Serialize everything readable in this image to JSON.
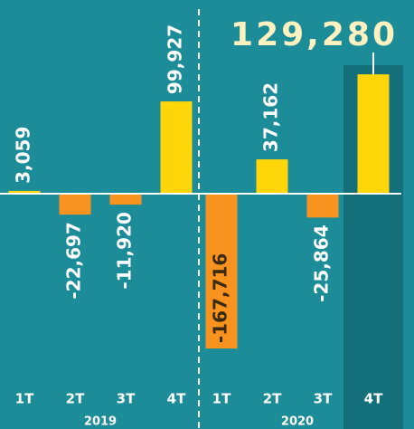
{
  "chart_data": {
    "type": "bar",
    "groups": [
      {
        "name": "2019",
        "categories": [
          "1T",
          "2T",
          "3T",
          "4T"
        ],
        "values": [
          3059,
          -22697,
          -11920,
          99927
        ],
        "value_labels": [
          "3,059",
          "-22,697",
          "-11,920",
          "99,927"
        ]
      },
      {
        "name": "2020",
        "categories": [
          "1T",
          "2T",
          "3T",
          "4T"
        ],
        "values": [
          -167716,
          37162,
          -25864,
          129280
        ],
        "value_labels": [
          "-167,716",
          "37,162",
          "-25,864",
          "129,280"
        ]
      }
    ],
    "color_positive": "#ffd60a",
    "color_negative": "#f7931e",
    "highlight_color": "#136f7a"
  }
}
